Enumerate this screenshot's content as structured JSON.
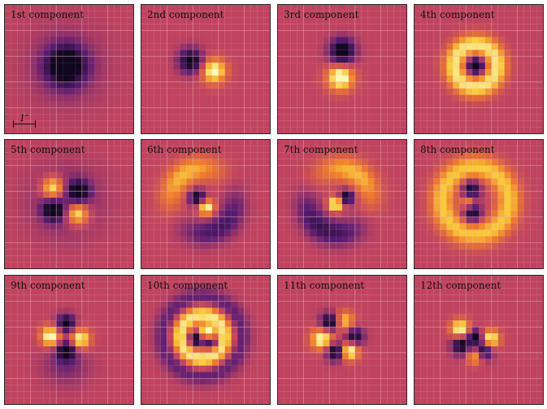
{
  "colormap": {
    "background": "#c0435f",
    "dark": "#10061f",
    "purple": "#5a1c73",
    "orange": "#f07b2c",
    "yellow": "#f8ca3d",
    "light": "#fdf8b8",
    "grid": "#e8a8b4"
  },
  "scale_bar": {
    "label": "1″"
  },
  "panels": [
    {
      "label": "1st component"
    },
    {
      "label": "2nd component"
    },
    {
      "label": "3rd component"
    },
    {
      "label": "4th component"
    },
    {
      "label": "5th component"
    },
    {
      "label": "6th component"
    },
    {
      "label": "7th component"
    },
    {
      "label": "8th component"
    },
    {
      "label": "9th component"
    },
    {
      "label": "10th component"
    },
    {
      "label": "11th component"
    },
    {
      "label": "12th component"
    }
  ]
}
